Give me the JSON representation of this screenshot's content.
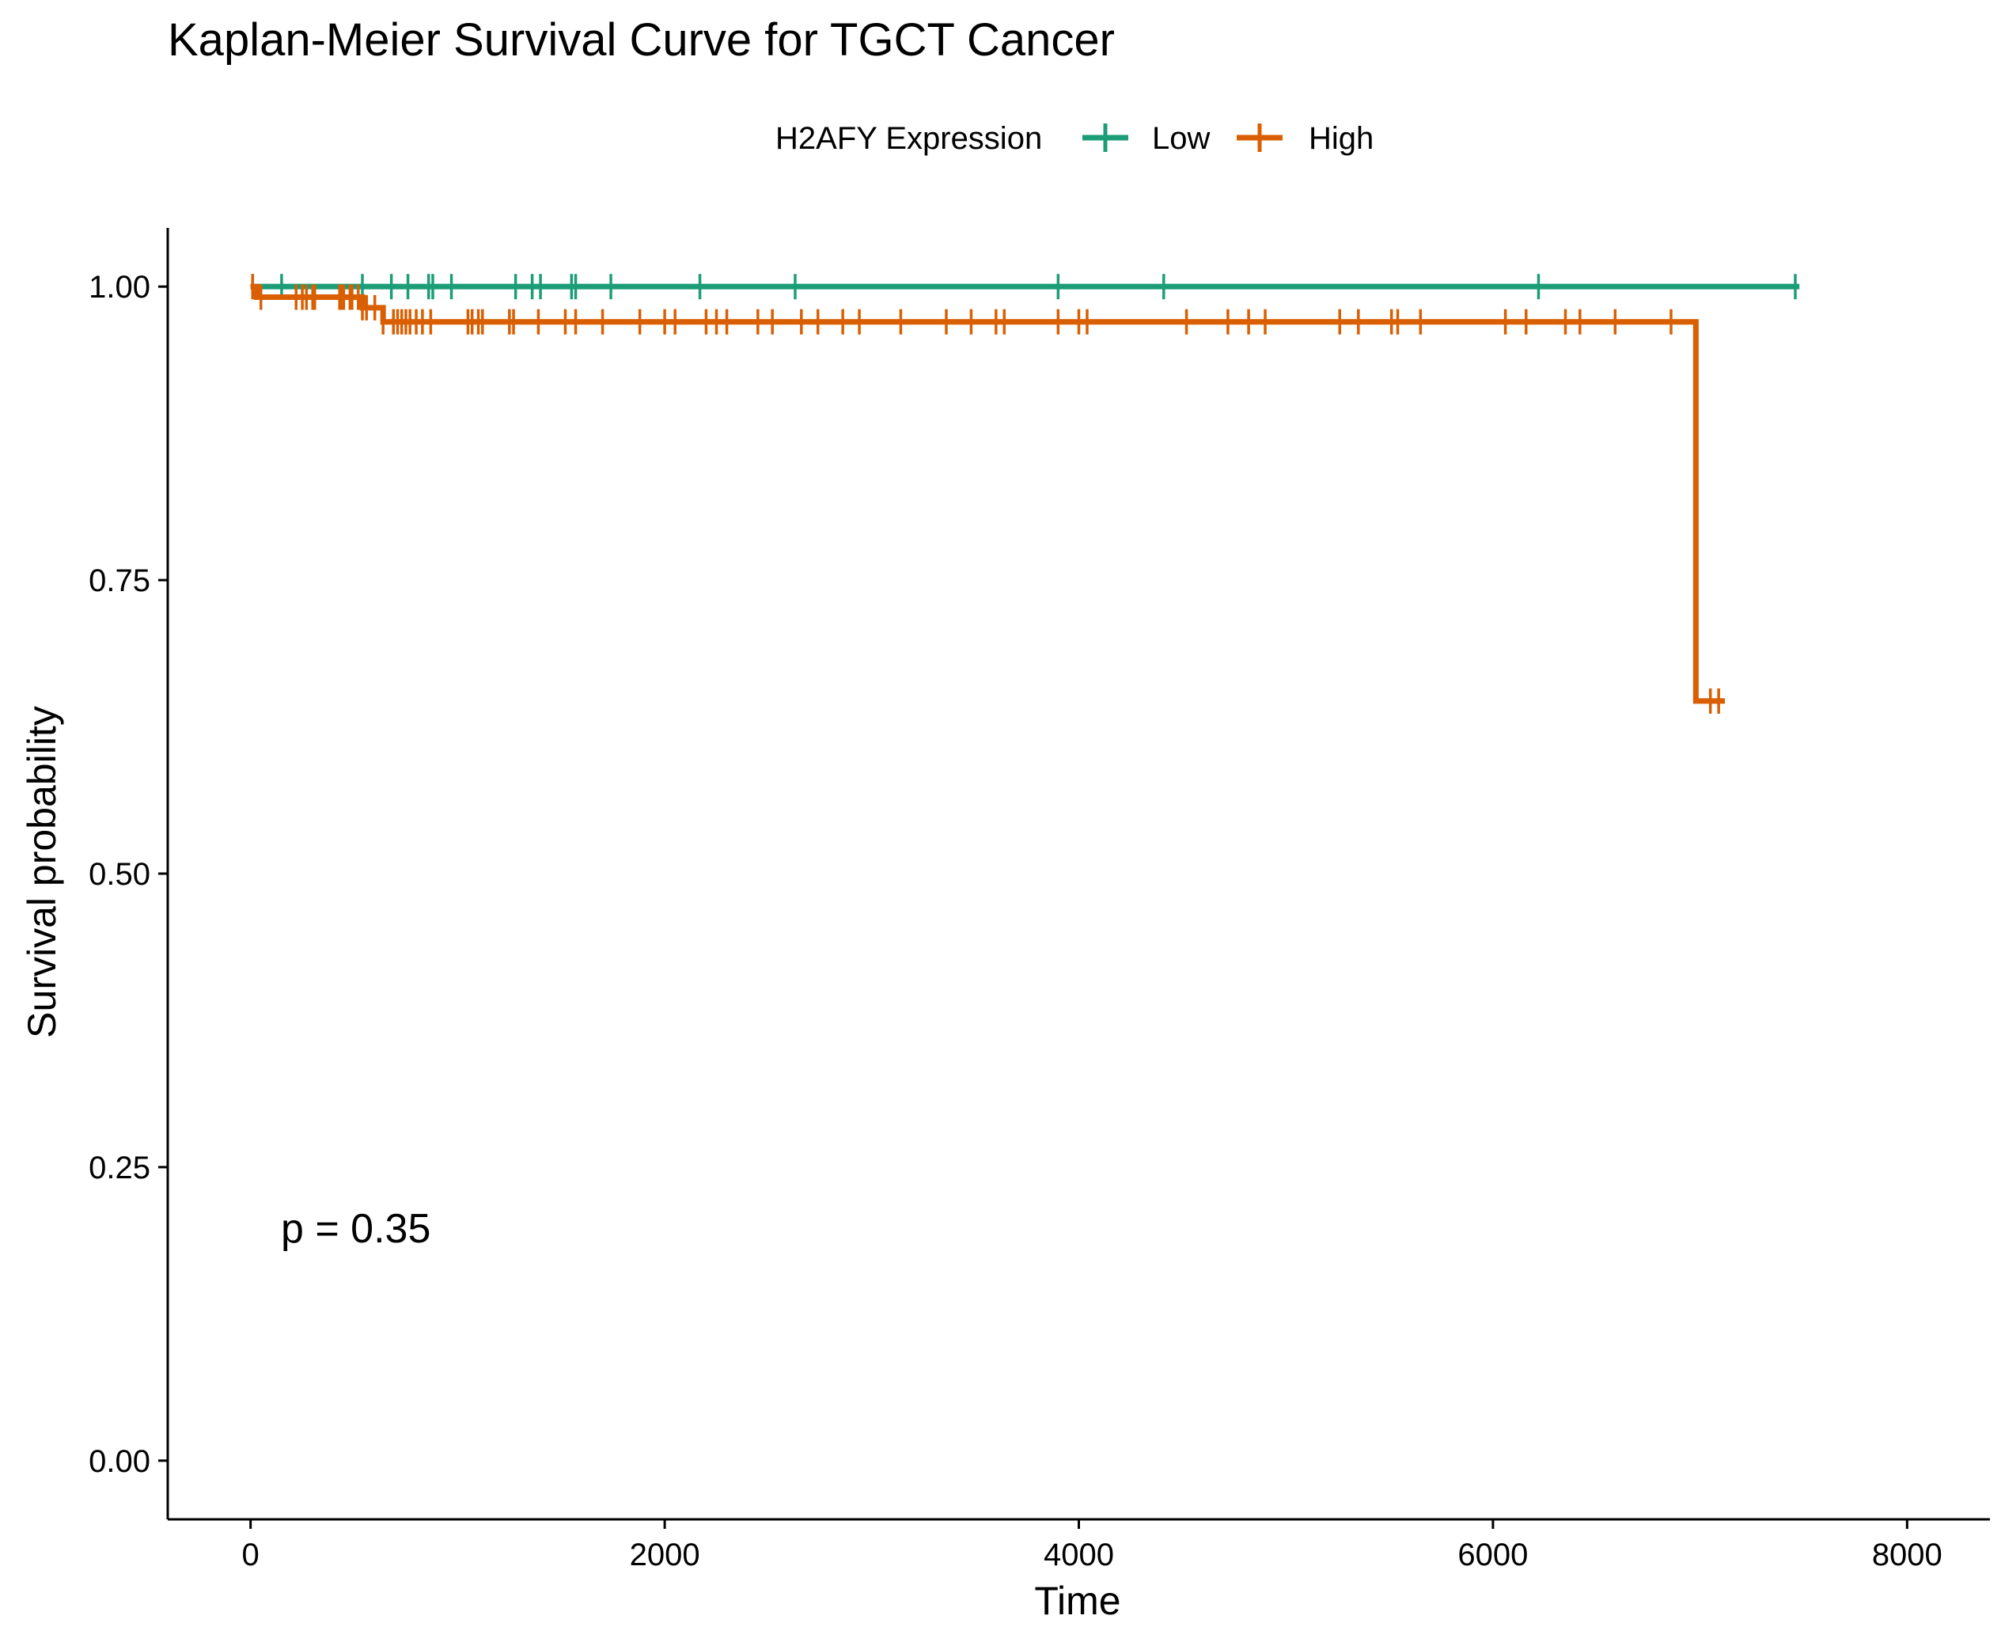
{
  "chart_data": {
    "type": "line",
    "title": "Kaplan-Meier Survival Curve for TGCT Cancer",
    "xlabel": "Time",
    "ylabel": "Survival probability",
    "xlim": [
      -400,
      8400
    ],
    "ylim": [
      -0.05,
      1.05
    ],
    "xticks": [
      0,
      2000,
      4000,
      6000,
      8000
    ],
    "yticks": [
      0.0,
      0.25,
      0.5,
      0.75,
      1.0
    ],
    "ytick_labels": [
      "0.00",
      "0.25",
      "0.50",
      "0.75",
      "1.00"
    ],
    "grid": false,
    "legend": {
      "title": "H2AFY Expression",
      "position": "top"
    },
    "annotation": "p = 0.35",
    "series": [
      {
        "name": "Low",
        "color": "#1b9e77",
        "steps": [
          [
            0,
            1.0
          ],
          [
            7480,
            1.0
          ]
        ],
        "censor_times": [
          10,
          150,
          540,
          680,
          760,
          860,
          880,
          970,
          1280,
          1360,
          1400,
          1550,
          1570,
          1740,
          2170,
          2630,
          3900,
          4410,
          6220,
          7460
        ]
      },
      {
        "name": "High",
        "color": "#d95f02",
        "steps": [
          [
            0,
            1.0
          ],
          [
            30,
            0.991
          ],
          [
            500,
            0.991
          ],
          [
            540,
            0.982
          ],
          [
            620,
            0.982
          ],
          [
            640,
            0.97
          ],
          [
            6960,
            0.97
          ],
          [
            6980,
            0.647
          ],
          [
            7120,
            0.647
          ]
        ],
        "censor_times": [
          10,
          50,
          220,
          250,
          270,
          300,
          310,
          430,
          440,
          450,
          480,
          490,
          520,
          540,
          560,
          600,
          640,
          690,
          710,
          730,
          750,
          770,
          800,
          830,
          870,
          1050,
          1070,
          1100,
          1120,
          1250,
          1270,
          1390,
          1520,
          1570,
          1700,
          1880,
          2000,
          2050,
          2200,
          2250,
          2300,
          2450,
          2520,
          2660,
          2740,
          2860,
          2940,
          3140,
          3360,
          3480,
          3600,
          3640,
          3900,
          4000,
          4040,
          4520,
          4720,
          4820,
          4900,
          5260,
          5350,
          5510,
          5540,
          5650,
          6060,
          6160,
          6350,
          6420,
          6590,
          6860,
          7050,
          7090
        ]
      }
    ]
  }
}
